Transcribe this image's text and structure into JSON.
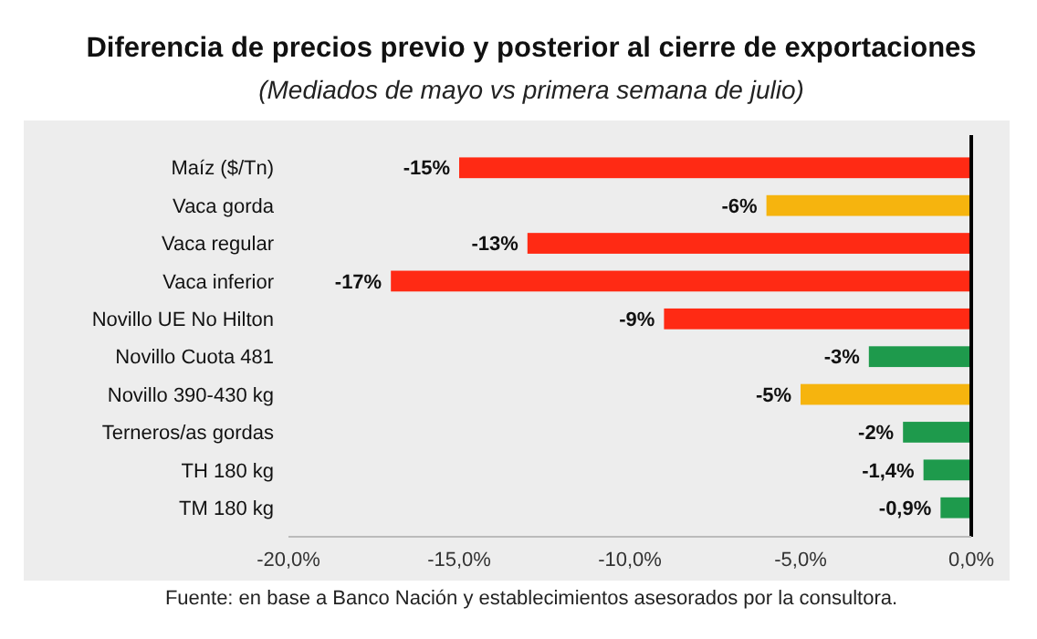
{
  "chart_data": {
    "type": "bar",
    "orientation": "horizontal",
    "title": "Diferencia de precios previo y posterior al cierre de exportaciones",
    "subtitle": "(Mediados de mayo vs primera semana de julio)",
    "categories": [
      "Maíz ($/Tn)",
      "Vaca gorda",
      "Vaca regular",
      "Vaca inferior",
      "Novillo UE No Hilton",
      "Novillo Cuota 481",
      "Novillo 390-430 kg",
      "Terneros/as gordas",
      "TH 180 kg",
      "TM 180 kg"
    ],
    "values": [
      -15,
      -6,
      -13,
      -17,
      -9,
      -3,
      -5,
      -2,
      -1.4,
      -0.9
    ],
    "colors": [
      "#ff2a14",
      "#f6b40e",
      "#ff2a14",
      "#ff2a14",
      "#ff2a14",
      "#1e9a4c",
      "#f6b40e",
      "#1e9a4c",
      "#1e9a4c",
      "#1e9a4c"
    ],
    "value_labels": [
      "-15%",
      "-6%",
      "-13%",
      "-17%",
      "-9%",
      "-3%",
      "-5%",
      "-2%",
      "-1,4%",
      "-0,9%"
    ],
    "xlim": [
      -20,
      0
    ],
    "xticks": [
      {
        "value": -20,
        "label": "-20,0%"
      },
      {
        "value": -15,
        "label": "-15,0%"
      },
      {
        "value": -10,
        "label": "-10,0%"
      },
      {
        "value": -5,
        "label": "-5,0%"
      },
      {
        "value": 0,
        "label": "0,0%"
      }
    ],
    "grid": false,
    "annotations": [
      "Fuente: en base a Banco Nación y establecimientos asesorados por la consultora."
    ]
  }
}
